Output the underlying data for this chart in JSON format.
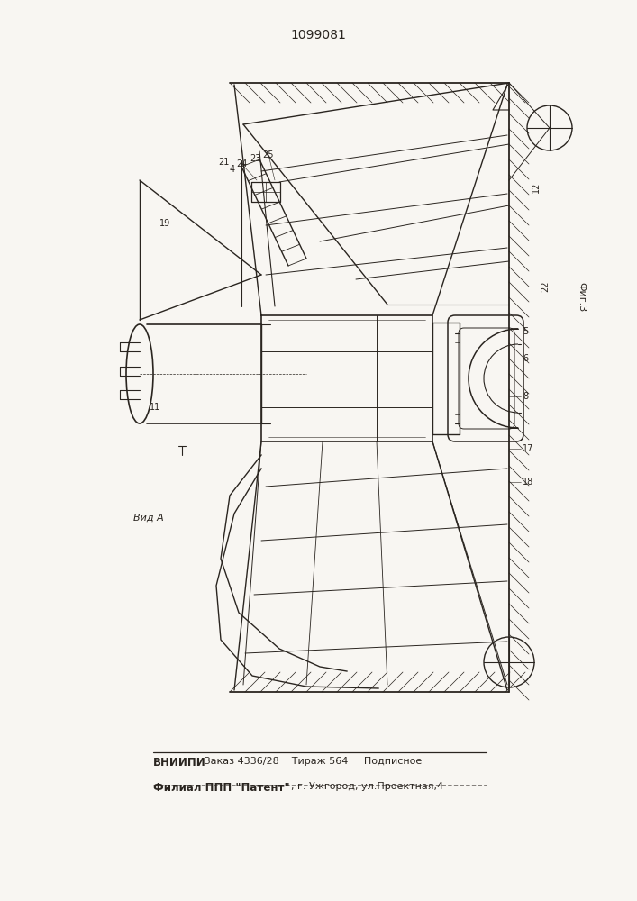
{
  "title": "1099081",
  "bg_color": "#f8f6f2",
  "line_color": "#2a2520",
  "footer_bold1": "ВНИИПИ",
  "footer_plain1": "   Заказ 4336/28    Тираж 564     Подписное",
  "footer_bold2": "Филиал ППП \"Патент\"",
  "footer_plain2": ", г. Ужгород, ул.Проектная,4",
  "fig_label": "Фиг.3",
  "vid_label": "Вид А"
}
